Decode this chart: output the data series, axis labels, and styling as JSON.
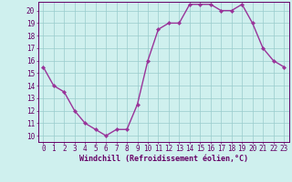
{
  "x": [
    0,
    1,
    2,
    3,
    4,
    5,
    6,
    7,
    8,
    9,
    10,
    11,
    12,
    13,
    14,
    15,
    16,
    17,
    18,
    19,
    20,
    21,
    22,
    23
  ],
  "y": [
    15.5,
    14.0,
    13.5,
    12.0,
    11.0,
    10.5,
    10.0,
    10.5,
    10.5,
    12.5,
    16.0,
    18.5,
    19.0,
    19.0,
    20.5,
    20.5,
    20.5,
    20.0,
    20.0,
    20.5,
    19.0,
    17.0,
    16.0,
    15.5
  ],
  "line_color": "#993399",
  "marker": "D",
  "marker_size": 2.2,
  "line_width": 1.0,
  "bg_color": "#cff0ee",
  "grid_color": "#99cccc",
  "xlabel": "Windchill (Refroidissement éolien,°C)",
  "xlabel_color": "#660066",
  "tick_color": "#660066",
  "xlim": [
    -0.5,
    23.5
  ],
  "ylim": [
    9.5,
    20.7
  ],
  "yticks": [
    10,
    11,
    12,
    13,
    14,
    15,
    16,
    17,
    18,
    19,
    20
  ],
  "xticks": [
    0,
    1,
    2,
    3,
    4,
    5,
    6,
    7,
    8,
    9,
    10,
    11,
    12,
    13,
    14,
    15,
    16,
    17,
    18,
    19,
    20,
    21,
    22,
    23
  ],
  "xtick_labels": [
    "0",
    "1",
    "2",
    "3",
    "4",
    "5",
    "6",
    "7",
    "8",
    "9",
    "10",
    "11",
    "12",
    "13",
    "14",
    "15",
    "16",
    "17",
    "18",
    "19",
    "20",
    "21",
    "22",
    "23"
  ],
  "spine_color": "#660066",
  "font_size": 5.5,
  "xlabel_fontsize": 6.0
}
